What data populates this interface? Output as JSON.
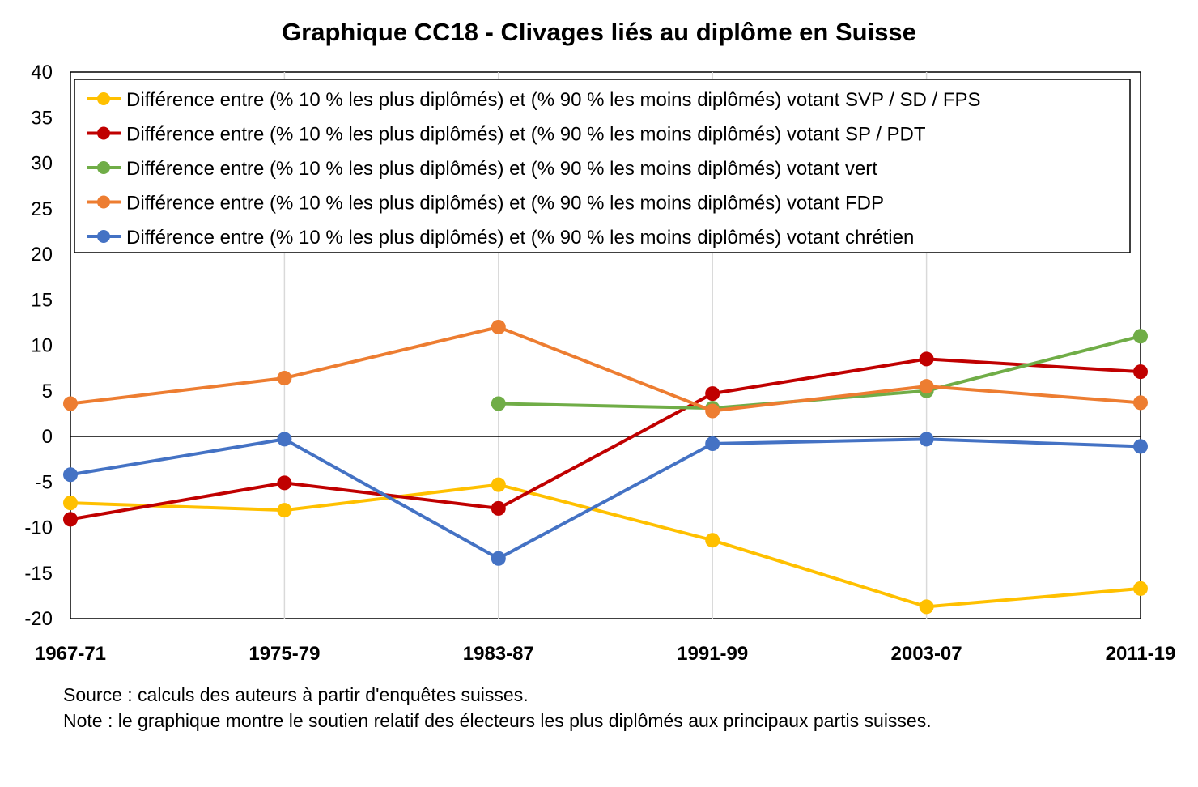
{
  "chart_data": {
    "type": "line",
    "title": "Graphique CC18 - Clivages liés au diplôme en Suisse",
    "xlabel": "",
    "ylabel": "",
    "ylim": [
      -20,
      40
    ],
    "yticks": [
      40,
      35,
      30,
      25,
      20,
      15,
      10,
      5,
      0,
      -5,
      -10,
      -15,
      -20
    ],
    "categories": [
      "1967-71",
      "1975-79",
      "1983-87",
      "1991-99",
      "2003-07",
      "2011-19"
    ],
    "grid": "vertical",
    "legend_position": "top",
    "series": [
      {
        "name": "Différence entre (% 10 % les plus diplômés) et (% 90 % les moins diplômés) votant SVP / SD / FPS",
        "color": "#FFC000",
        "values": [
          -7.3,
          -8.1,
          -5.3,
          -11.4,
          -18.7,
          -16.7
        ]
      },
      {
        "name": "Différence entre (% 10 % les plus diplômés) et (% 90 % les moins diplômés) votant SP / PDT",
        "color": "#C00000",
        "values": [
          -9.1,
          -5.1,
          -7.9,
          4.7,
          8.5,
          7.1
        ]
      },
      {
        "name": "Différence entre (% 10 % les plus diplômés) et (% 90 % les moins diplômés) votant vert",
        "color": "#70AD47",
        "values": [
          null,
          null,
          3.6,
          3.1,
          5.0,
          11.0
        ]
      },
      {
        "name": "Différence entre (% 10 % les plus diplômés) et (% 90 % les moins diplômés) votant FDP",
        "color": "#ED7D31",
        "values": [
          3.6,
          6.4,
          12.0,
          2.8,
          5.5,
          3.7
        ]
      },
      {
        "name": "Différence entre (% 10 % les plus diplômés) et (% 90 % les moins diplômés) votant chrétien",
        "color": "#4472C4",
        "values": [
          -4.2,
          -0.3,
          -13.4,
          -0.8,
          -0.3,
          -1.1
        ]
      }
    ]
  },
  "footnotes": {
    "source": "Source : calculs des auteurs à partir d'enquêtes suisses.",
    "note": "Note : le graphique montre le soutien relatif des électeurs les plus diplômés aux principaux partis suisses."
  }
}
